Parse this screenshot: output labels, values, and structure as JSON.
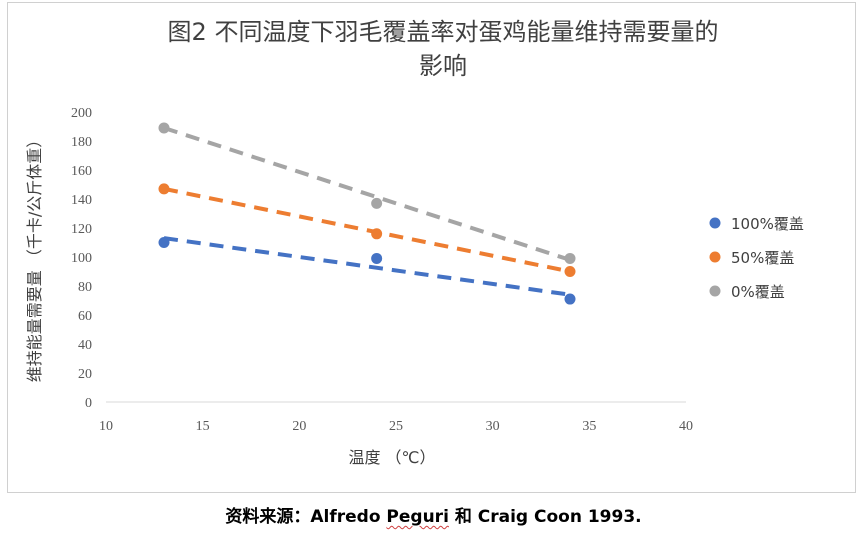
{
  "chart_data": {
    "type": "scatter",
    "title_line1": "图2 不同温度下羽毛覆盖率对蛋鸡能量维持需要量的",
    "title_line2": "影响",
    "xlabel": "温度 （℃）",
    "ylabel": "维持能量需要量 （千卡/公斤体重）",
    "xlim": [
      10,
      40
    ],
    "ylim": [
      0,
      200
    ],
    "x_ticks": [
      10,
      15,
      20,
      25,
      30,
      35,
      40
    ],
    "y_ticks": [
      0,
      20,
      40,
      60,
      80,
      100,
      120,
      140,
      160,
      180,
      200
    ],
    "grid": false,
    "legend_position": "right",
    "series": [
      {
        "name": "100%覆盖",
        "color": "#4472C4",
        "points": [
          [
            13,
            110
          ],
          [
            24,
            99
          ],
          [
            34,
            71
          ]
        ],
        "trend": [
          [
            13,
            113
          ],
          [
            34,
            74
          ]
        ]
      },
      {
        "name": "50%覆盖",
        "color": "#ED7D31",
        "points": [
          [
            13,
            147
          ],
          [
            24,
            116
          ],
          [
            34,
            90
          ]
        ],
        "trend": [
          [
            13,
            147
          ],
          [
            34,
            90
          ]
        ]
      },
      {
        "name": "0%覆盖",
        "color": "#A5A5A5",
        "points": [
          [
            13,
            189
          ],
          [
            24,
            137
          ],
          [
            34,
            99
          ]
        ],
        "trend": [
          [
            13,
            189
          ],
          [
            34,
            98
          ]
        ]
      }
    ]
  },
  "caption": {
    "prefix": "资料来源：Alfredo ",
    "underlined": "Peguri",
    "suffix": "  和  Craig Coon 1993."
  }
}
